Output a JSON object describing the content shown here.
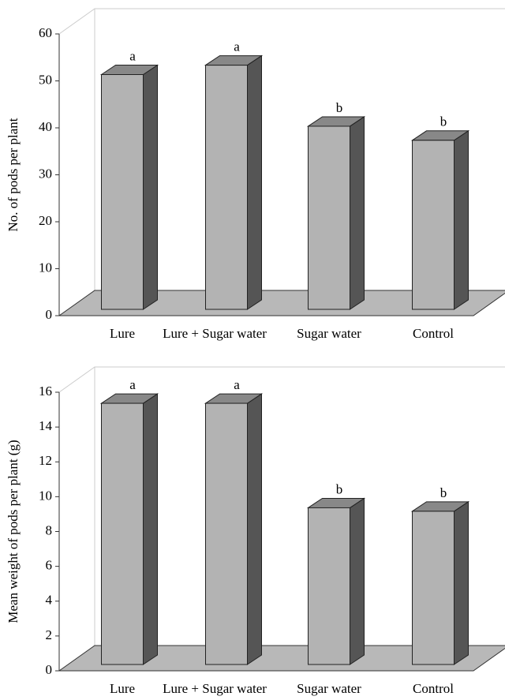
{
  "chart_data": [
    {
      "type": "bar",
      "y_label": "No. of pods per plant",
      "categories": [
        "Lure",
        "Lure + Sugar water",
        "Sugar water",
        "Control"
      ],
      "values": [
        50,
        52,
        39,
        36
      ],
      "annotations": [
        "a",
        "a",
        "b",
        "b"
      ],
      "color": "#b3b3b3",
      "ylim": [
        0,
        60
      ],
      "yticks": [
        0,
        10,
        20,
        30,
        40,
        50,
        60
      ]
    },
    {
      "type": "bar",
      "y_label": "Mean weight of pods per plant (g)",
      "categories": [
        "Lure",
        "Lure + Sugar water",
        "Sugar water",
        "Control"
      ],
      "values": [
        15,
        15,
        9,
        8.8
      ],
      "annotations": [
        "a",
        "a",
        "b",
        "b"
      ],
      "color": "#b3b3b3",
      "ylim": [
        0,
        16
      ],
      "yticks": [
        0,
        2,
        4,
        6,
        8,
        10,
        12,
        14,
        16
      ]
    }
  ]
}
